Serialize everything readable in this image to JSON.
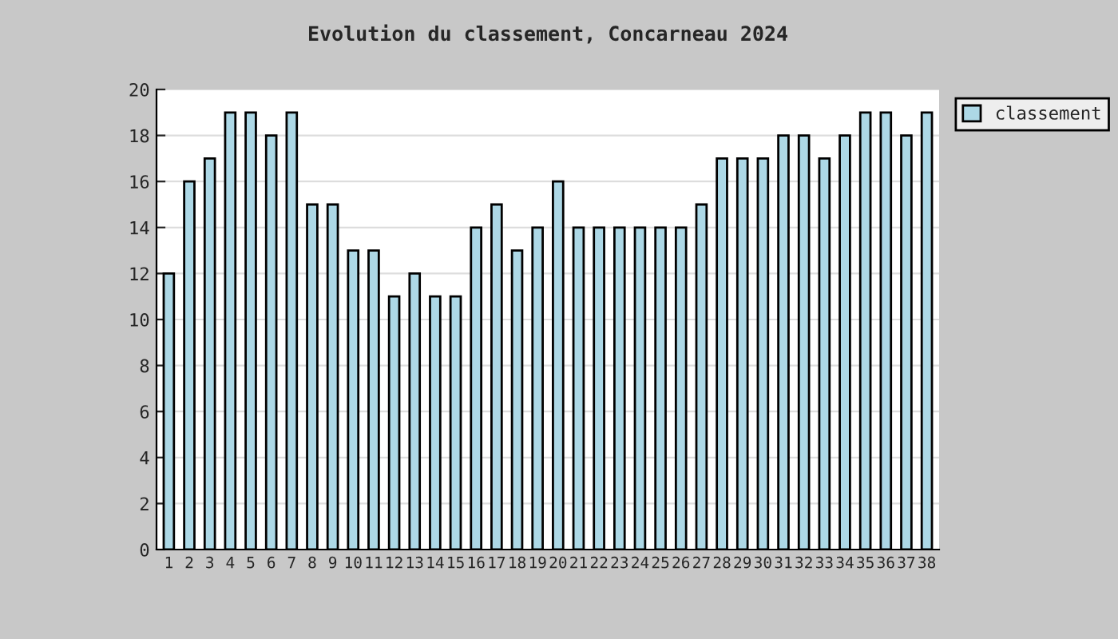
{
  "chart_data": {
    "type": "bar",
    "title": "Evolution du classement, Concarneau 2024",
    "categories": [
      "1",
      "2",
      "3",
      "4",
      "5",
      "6",
      "7",
      "8",
      "9",
      "10",
      "11",
      "12",
      "13",
      "14",
      "15",
      "16",
      "17",
      "18",
      "19",
      "20",
      "21",
      "22",
      "23",
      "24",
      "25",
      "26",
      "27",
      "28",
      "29",
      "30",
      "31",
      "32",
      "33",
      "34",
      "35",
      "36",
      "37",
      "38"
    ],
    "series": [
      {
        "name": "classement",
        "color": "#add8e6",
        "values": [
          12,
          16,
          17,
          19,
          19,
          18,
          19,
          15,
          15,
          13,
          13,
          11,
          12,
          11,
          11,
          14,
          15,
          13,
          14,
          16,
          14,
          14,
          14,
          14,
          14,
          14,
          15,
          17,
          17,
          17,
          18,
          18,
          17,
          18,
          19,
          19,
          18,
          19
        ]
      }
    ],
    "ylim": [
      0,
      20
    ],
    "yticks": [
      0,
      2,
      4,
      6,
      8,
      10,
      12,
      14,
      16,
      18,
      20
    ],
    "grid": "y",
    "legend": "top right"
  }
}
